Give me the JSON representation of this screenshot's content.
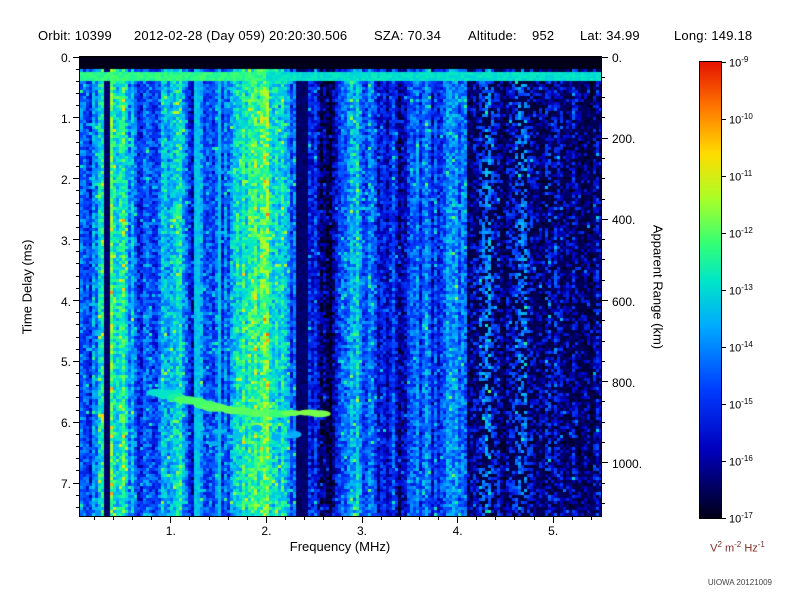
{
  "header": {
    "segments": [
      "Orbit: 10399",
      "2012-02-28 (Day 059) 20:20:30.506",
      "SZA: 70.34",
      "Altitude:    952",
      "Lat: 34.99",
      "Long: 149.18"
    ]
  },
  "chart_data": {
    "type": "heatmap",
    "description": "Radar sounder ionogram spectrogram: received spectral density vs frequency and time delay",
    "xlabel": "Frequency (MHz)",
    "ylabel_left": "Time Delay (ms)",
    "ylabel_right": "Apparent Range (km)",
    "xlim": [
      0.05,
      5.5
    ],
    "ylim_ms": [
      0,
      7.54
    ],
    "xticks": [
      1,
      2,
      3,
      4,
      5
    ],
    "xtick_minor_step": 0.2,
    "yticks_left_ms": [
      0,
      1,
      2,
      3,
      4,
      5,
      6,
      7
    ],
    "ytick_minor_step_ms": 0.2,
    "yticks_right_km": [
      0,
      200,
      400,
      600,
      800,
      1000
    ],
    "ytick_minor_step_km": 50,
    "range_km_per_ms": 150,
    "grid": false,
    "watermark": "UIOWA 20121009",
    "colorbar": {
      "scale": "log10",
      "units_parts": [
        [
          "V",
          "2"
        ],
        [
          " m",
          "-2"
        ],
        [
          " Hz",
          "-1"
        ]
      ],
      "units_color": "#7b2d26",
      "exponents": [
        -9,
        -10,
        -11,
        -12,
        -13,
        -14,
        -15,
        -16,
        -17
      ],
      "top_value": "1e-9",
      "bottom_value": "1e-17",
      "colormap": [
        {
          "v": 0.0,
          "c": "#000019"
        },
        {
          "v": 0.06,
          "c": "#00005a"
        },
        {
          "v": 0.15,
          "c": "#0000be"
        },
        {
          "v": 0.28,
          "c": "#003cff"
        },
        {
          "v": 0.42,
          "c": "#00aaff"
        },
        {
          "v": 0.52,
          "c": "#00e6c8"
        },
        {
          "v": 0.6,
          "c": "#32ff78"
        },
        {
          "v": 0.7,
          "c": "#aaff28"
        },
        {
          "v": 0.8,
          "c": "#ffdc00"
        },
        {
          "v": 0.9,
          "c": "#ff7800"
        },
        {
          "v": 1.0,
          "c": "#e61400"
        }
      ]
    },
    "features": {
      "blanking_band_ms": [
        0,
        0.2
      ],
      "transmit_pulse_band_ms": [
        0.24,
        0.38
      ],
      "dark_columns_mhz": [
        [
          0.16,
          0.19
        ],
        [
          0.3,
          0.36
        ],
        [
          2.3,
          2.43
        ]
      ],
      "bright_columns_mhz": [
        [
          1.24,
          1.29
        ],
        [
          1.5,
          1.53
        ]
      ],
      "noise_regions": [
        {
          "f": [
            0.05,
            0.55
          ],
          "level": 0.44
        },
        {
          "f": [
            0.55,
            2.3
          ],
          "level": 0.34
        },
        {
          "f": [
            2.3,
            4.1
          ],
          "level": 0.27
        },
        {
          "f": [
            4.1,
            5.5
          ],
          "level": 0.15
        }
      ],
      "echo_trace_mhz_ms": [
        [
          0.85,
          5.5
        ],
        [
          0.95,
          5.55
        ],
        [
          1.05,
          5.6
        ],
        [
          1.15,
          5.62
        ],
        [
          1.25,
          5.66
        ],
        [
          1.35,
          5.7
        ],
        [
          1.45,
          5.74
        ],
        [
          1.55,
          5.76
        ],
        [
          1.65,
          5.8
        ],
        [
          1.75,
          5.8
        ],
        [
          1.85,
          5.82
        ],
        [
          1.95,
          5.84
        ],
        [
          2.05,
          5.85
        ],
        [
          2.15,
          5.85
        ],
        [
          2.25,
          5.85
        ],
        [
          2.45,
          5.85
        ],
        [
          2.55,
          5.85
        ]
      ],
      "echo_scatter_mhz_ms": [
        [
          1.3,
          6.1
        ],
        [
          1.5,
          6.15
        ],
        [
          1.7,
          6.22
        ],
        [
          1.9,
          6.1
        ],
        [
          2.1,
          6.25
        ],
        [
          2.3,
          6.2
        ],
        [
          1.45,
          6.35
        ]
      ]
    }
  }
}
